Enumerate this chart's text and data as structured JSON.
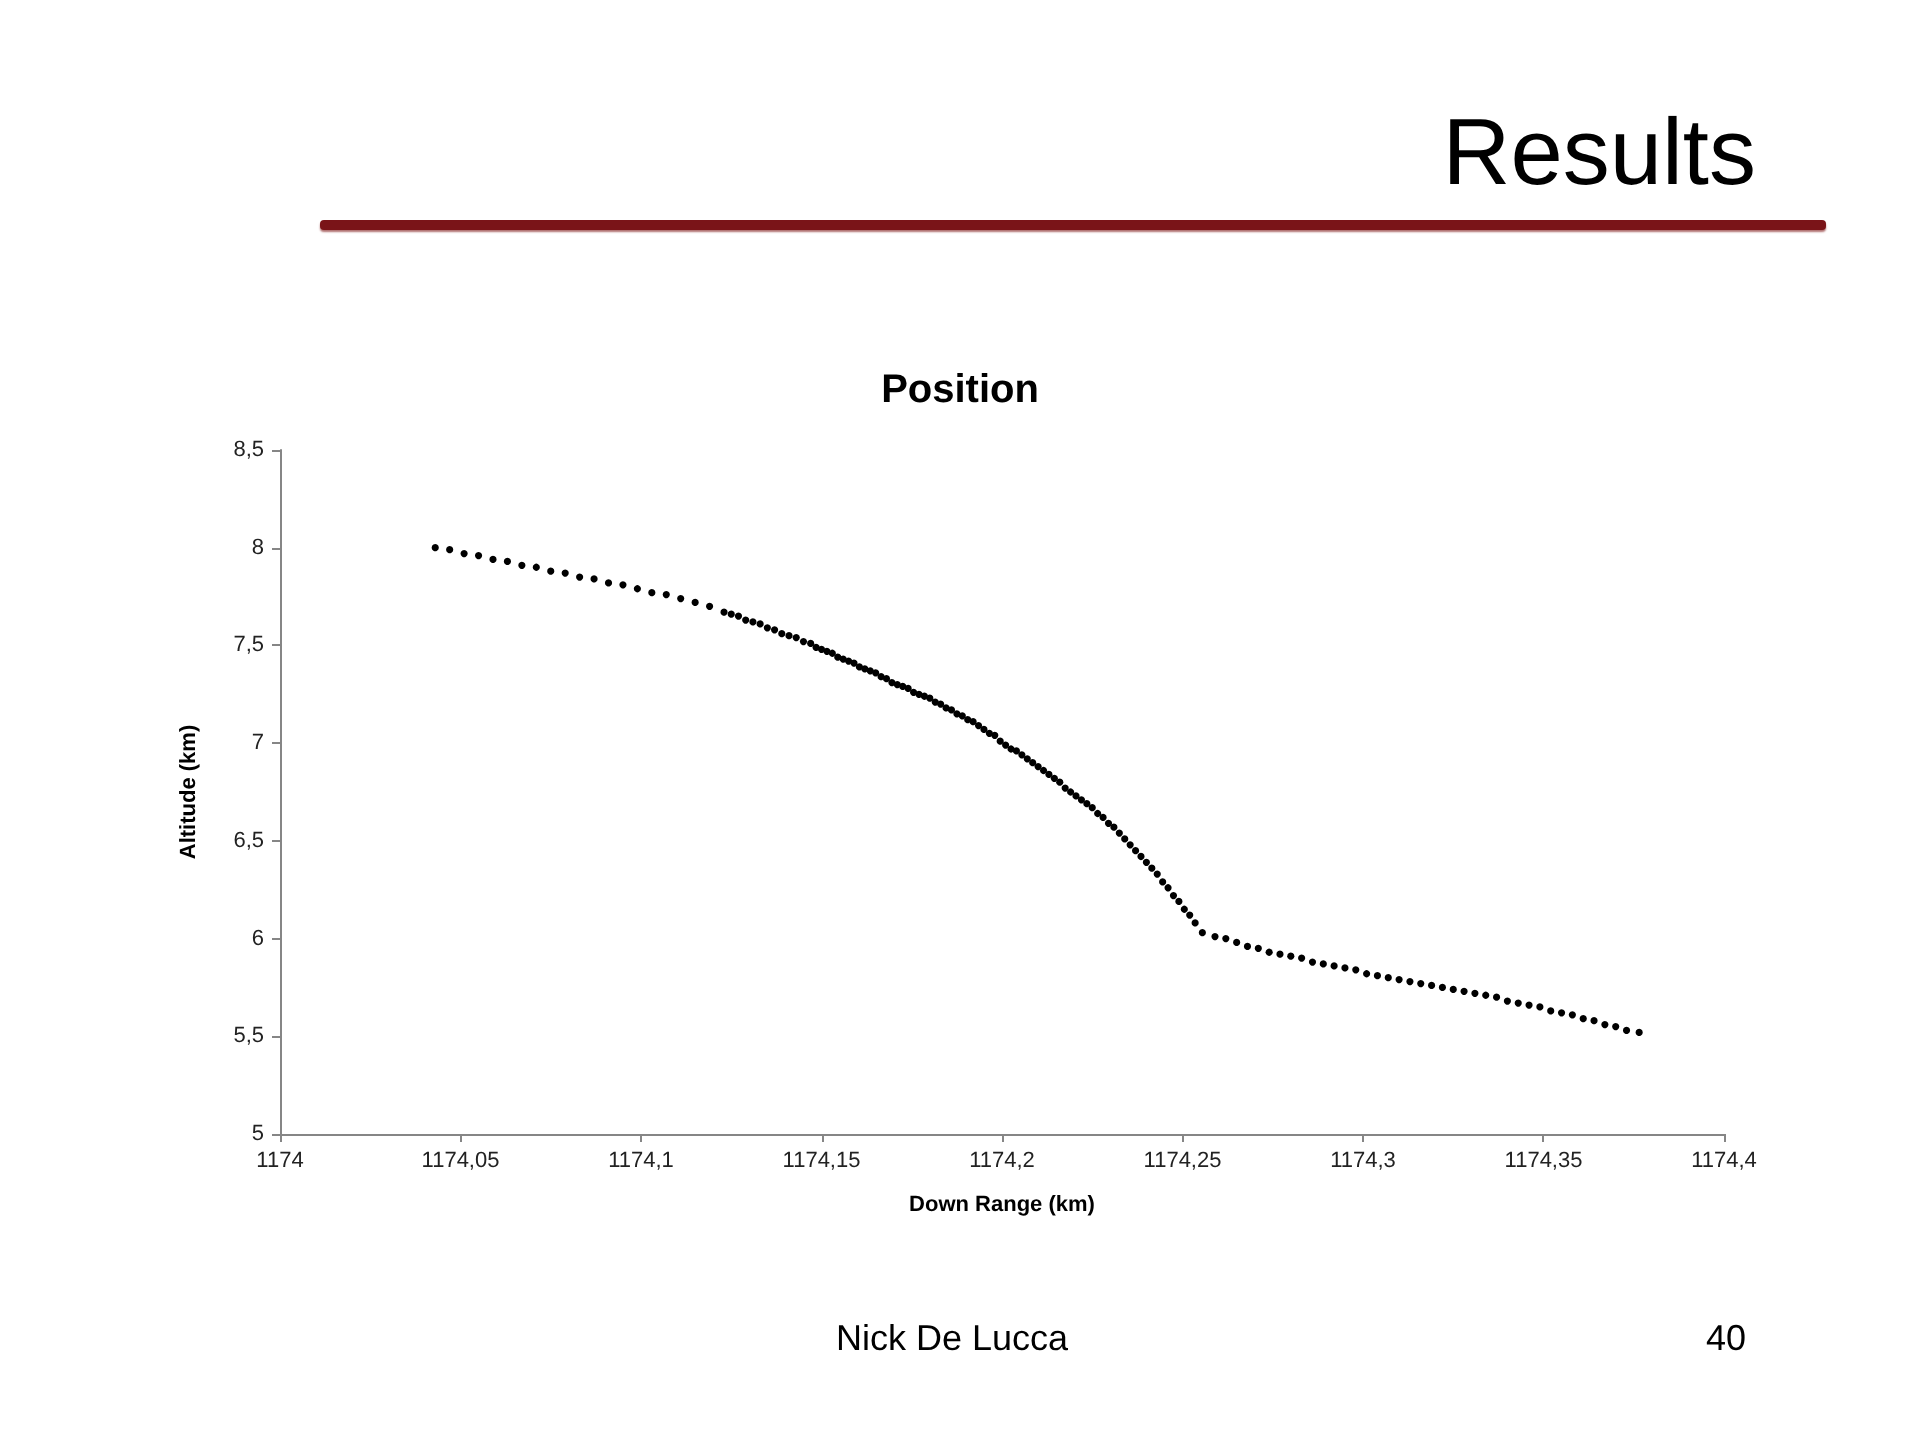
{
  "chart_data": {
    "type": "scatter",
    "title": "Position",
    "xlabel": "Down Range (km)",
    "ylabel": "Altitude (km)",
    "annotations": [
      "Results",
      "Nick De Lucca",
      "40"
    ],
    "x": [
      1174.043,
      1174.047,
      1174.051,
      1174.055,
      1174.059,
      1174.063,
      1174.067,
      1174.071,
      1174.075,
      1174.079,
      1174.083,
      1174.087,
      1174.091,
      1174.095,
      1174.099,
      1174.103,
      1174.107,
      1174.111,
      1174.115,
      1174.119,
      1174.123,
      1174.125,
      1174.127,
      1174.129,
      1174.131,
      1174.133,
      1174.135,
      1174.137,
      1174.139,
      1174.141,
      1174.143,
      1174.145,
      1174.147,
      1174.1485,
      1174.15,
      1174.1515,
      1174.153,
      1174.1545,
      1174.156,
      1174.1575,
      1174.159,
      1174.1605,
      1174.162,
      1174.1635,
      1174.165,
      1174.1665,
      1174.168,
      1174.1695,
      1174.171,
      1174.1725,
      1174.174,
      1174.1755,
      1174.177,
      1174.1785,
      1174.18,
      1174.1815,
      1174.183,
      1174.1845,
      1174.186,
      1174.1875,
      1174.189,
      1174.1905,
      1174.192,
      1174.1935,
      1174.195,
      1174.1965,
      1174.198,
      1174.1995,
      1174.201,
      1174.2025,
      1174.204,
      1174.2055,
      1174.207,
      1174.2085,
      1174.21,
      1174.2115,
      1174.213,
      1174.2145,
      1174.216,
      1174.2175,
      1174.219,
      1174.2205,
      1174.222,
      1174.2235,
      1174.225,
      1174.2265,
      1174.228,
      1174.2295,
      1174.231,
      1174.2325,
      1174.234,
      1174.2355,
      1174.237,
      1174.2385,
      1174.24,
      1174.2415,
      1174.243,
      1174.2445,
      1174.246,
      1174.2475,
      1174.249,
      1174.2505,
      1174.252,
      1174.2535,
      1174.2555,
      1174.259,
      1174.262,
      1174.265,
      1174.268,
      1174.271,
      1174.274,
      1174.277,
      1174.28,
      1174.283,
      1174.286,
      1174.289,
      1174.292,
      1174.295,
      1174.298,
      1174.301,
      1174.304,
      1174.307,
      1174.31,
      1174.313,
      1174.316,
      1174.319,
      1174.322,
      1174.325,
      1174.328,
      1174.331,
      1174.334,
      1174.337,
      1174.34,
      1174.343,
      1174.346,
      1174.349,
      1174.352,
      1174.355,
      1174.358,
      1174.361,
      1174.364,
      1174.367,
      1174.37,
      1174.373,
      1174.3765
    ],
    "series": [
      {
        "color": "#000000",
        "values": [
          8.0,
          7.99,
          7.97,
          7.96,
          7.94,
          7.93,
          7.91,
          7.9,
          7.88,
          7.87,
          7.85,
          7.84,
          7.82,
          7.81,
          7.79,
          7.77,
          7.76,
          7.74,
          7.72,
          7.7,
          7.67,
          7.66,
          7.65,
          7.63,
          7.62,
          7.61,
          7.59,
          7.58,
          7.56,
          7.55,
          7.54,
          7.52,
          7.51,
          7.49,
          7.48,
          7.47,
          7.46,
          7.44,
          7.43,
          7.42,
          7.41,
          7.39,
          7.38,
          7.37,
          7.36,
          7.34,
          7.33,
          7.31,
          7.3,
          7.29,
          7.28,
          7.26,
          7.25,
          7.24,
          7.23,
          7.21,
          7.2,
          7.18,
          7.17,
          7.15,
          7.14,
          7.12,
          7.11,
          7.09,
          7.07,
          7.05,
          7.04,
          7.01,
          6.99,
          6.97,
          6.96,
          6.94,
          6.92,
          6.9,
          6.88,
          6.86,
          6.84,
          6.82,
          6.8,
          6.77,
          6.75,
          6.73,
          6.71,
          6.69,
          6.67,
          6.64,
          6.62,
          6.59,
          6.57,
          6.54,
          6.51,
          6.48,
          6.45,
          6.42,
          6.39,
          6.36,
          6.33,
          6.29,
          6.26,
          6.22,
          6.19,
          6.15,
          6.12,
          6.08,
          6.03,
          6.01,
          6.0,
          5.98,
          5.96,
          5.95,
          5.93,
          5.92,
          5.91,
          5.9,
          5.88,
          5.87,
          5.86,
          5.85,
          5.84,
          5.82,
          5.81,
          5.8,
          5.79,
          5.78,
          5.77,
          5.76,
          5.75,
          5.74,
          5.73,
          5.72,
          5.71,
          5.7,
          5.68,
          5.67,
          5.66,
          5.65,
          5.63,
          5.62,
          5.61,
          5.59,
          5.58,
          5.56,
          5.55,
          5.53,
          5.52
        ]
      }
    ],
    "xlim": [
      1174,
      1174.4
    ],
    "xticks": [
      1174,
      {
        "value": 1174.05,
        "label": "1174,05"
      },
      {
        "value": 1174.1,
        "label": "1174,1"
      },
      {
        "value": 1174.15,
        "label": "1174,15"
      },
      {
        "value": 1174.2,
        "label": "1174,2"
      },
      {
        "value": 1174.25,
        "label": "1174,25"
      },
      {
        "value": 1174.3,
        "label": "1174,3"
      },
      {
        "value": 1174.35,
        "label": "1174,35"
      },
      {
        "value": 1174.4,
        "label": "1174,4"
      }
    ],
    "ylim": [
      5,
      8.5
    ],
    "yticks": [
      5,
      {
        "value": 5.5,
        "label": "5,5"
      },
      6,
      {
        "value": 6.5,
        "label": "6,5"
      },
      7,
      {
        "value": 7.5,
        "label": "7,5"
      },
      8,
      {
        "value": 8.5,
        "label": "8,5"
      }
    ],
    "marker": "circle"
  }
}
